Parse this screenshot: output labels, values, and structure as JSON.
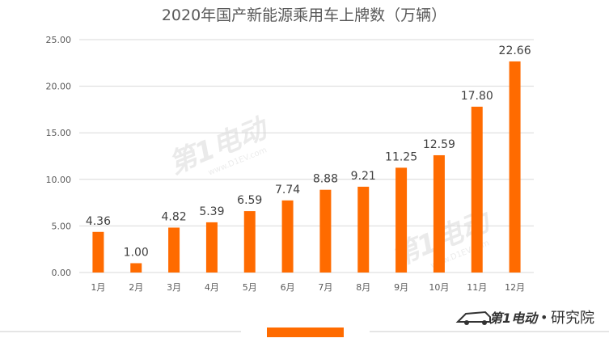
{
  "chart_data": {
    "type": "bar",
    "title": "2020年国产新能源乘用车上牌数（万辆）",
    "categories": [
      "1月",
      "2月",
      "3月",
      "4月",
      "5月",
      "6月",
      "7月",
      "8月",
      "9月",
      "10月",
      "11月",
      "12月"
    ],
    "values": [
      4.36,
      1.0,
      4.82,
      5.39,
      6.59,
      7.74,
      8.88,
      9.21,
      11.25,
      12.59,
      17.8,
      22.66
    ],
    "value_labels": [
      "4.36",
      "1.00",
      "4.82",
      "5.39",
      "6.59",
      "7.74",
      "8.88",
      "9.21",
      "11.25",
      "12.59",
      "17.80",
      "22.66"
    ],
    "yticks": [
      "0.00",
      "5.00",
      "10.00",
      "15.00",
      "20.00",
      "25.00"
    ],
    "ylim": [
      0,
      25
    ],
    "grid": true,
    "legend": "none",
    "colors": {
      "bar": "#FF6B00",
      "grid": "#d9d9d9",
      "accent": "#FF6B00"
    }
  },
  "branding": {
    "logo_text": "第1电动",
    "separator": "•",
    "org_name": "研究院"
  },
  "watermark": {
    "text": "第1电动",
    "url": "www.D1EV.com"
  }
}
